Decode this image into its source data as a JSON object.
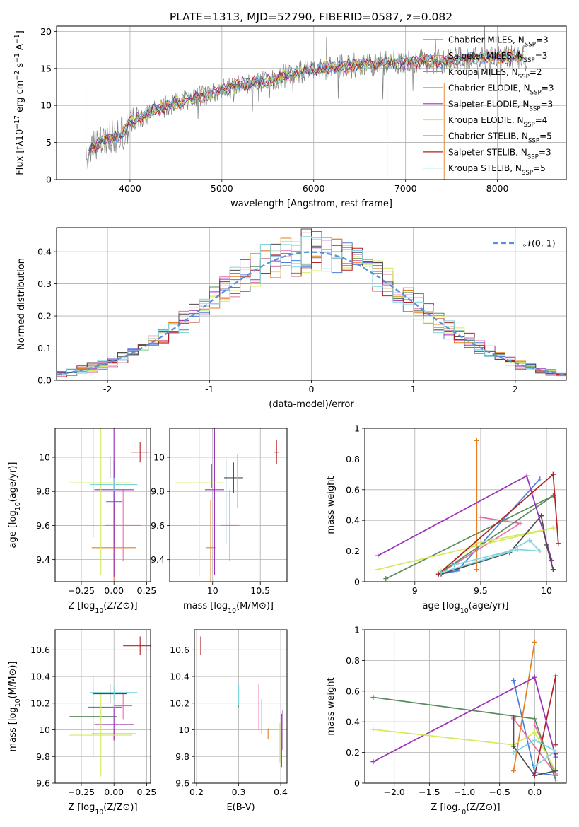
{
  "figure": {
    "title": "PLATE=1313, MJD=52790, FIBERID=0587, z=0.082"
  },
  "colors": {
    "Chabrier MILES": "#4a7fdb",
    "Salpeter MILES": "#e76fa8",
    "Kroupa MILES": "#e67e22",
    "Chabrier ELODIE": "#5a8a5e",
    "Salpeter ELODIE": "#9b30b8",
    "Kroupa ELODIE": "#d4ea5c",
    "Chabrier STELIB": "#4d4d4d",
    "Salpeter STELIB": "#b22222",
    "Kroupa STELIB": "#7fd4e0",
    "data": "#808080"
  },
  "chart_data": [
    {
      "id": "spectrum",
      "type": "line",
      "title": "PLATE=1313, MJD=52790, FIBERID=0587, z=0.082",
      "xlabel": "wavelength [Angstrom, rest frame]",
      "ylabel": "Flux [f$_\\lambda$10$^{-17}$ erg cm$^{-2}$ s$^{-1}$ A$^{-1}$]",
      "xlim": [
        3200,
        8750
      ],
      "ylim": [
        0,
        20.7
      ],
      "xticks": [
        4000,
        5000,
        6000,
        7000,
        8000
      ],
      "yticks": [
        0,
        5,
        10,
        15,
        20
      ],
      "legend_position": "upper right",
      "continuum_x": [
        3520,
        3700,
        3900,
        4000,
        4300,
        4600,
        4900,
        5000,
        5200,
        5400,
        5600,
        5800,
        6000,
        6200,
        6400,
        6600,
        6800,
        7000,
        7200,
        7400,
        7600,
        7800,
        8000,
        8200,
        8320
      ],
      "continuum_y": [
        3.6,
        5.2,
        6.0,
        7.6,
        9.6,
        10.8,
        11.6,
        12.0,
        12.9,
        13.2,
        13.6,
        14.4,
        14.8,
        15.2,
        15.4,
        15.5,
        15.7,
        15.9,
        16.1,
        15.9,
        16.2,
        16.4,
        16.5,
        16.6,
        16.5
      ],
      "legend": [
        {
          "label": "Chabrier MILES, N$_{SSP}$=3",
          "color": "#4a7fdb"
        },
        {
          "label": "Salpeter MILES, N$_{SSP}$=3",
          "color": "#e76fa8"
        },
        {
          "label": "Kroupa MILES, N$_{SSP}$=2",
          "color": "#e67e22"
        },
        {
          "label": "Chabrier ELODIE, N$_{SSP}$=3",
          "color": "#5a8a5e"
        },
        {
          "label": "Salpeter ELODIE, N$_{SSP}$=3",
          "color": "#9b30b8"
        },
        {
          "label": "Kroupa ELODIE, N$_{SSP}$=4",
          "color": "#d4ea5c"
        },
        {
          "label": "Chabrier STELIB, N$_{SSP}$=5",
          "color": "#4d4d4d"
        },
        {
          "label": "Salpeter STELIB, N$_{SSP}$=3",
          "color": "#b22222"
        },
        {
          "label": "Kroupa STELIB, N$_{SSP}$=5",
          "color": "#7fd4e0"
        }
      ]
    },
    {
      "id": "residuals",
      "type": "step",
      "xlabel": "(data-model)/error",
      "ylabel": "Normed distribution",
      "xlim": [
        -2.5,
        2.5
      ],
      "ylim": [
        0,
        0.475
      ],
      "xticks": [
        -2,
        -1,
        0,
        1,
        2
      ],
      "yticks": [
        0.0,
        0.1,
        0.2,
        0.3,
        0.4
      ],
      "gaussian_label": "$\\mathcal{N}(0,1)$",
      "legend_position": "upper right",
      "bin_width": 0.1
    },
    {
      "id": "age-vs-Z",
      "type": "errorbar",
      "xlabel": "Z [log$_{10}$(Z/Z$_\\odot$)]",
      "ylabel": "age  [log$_{10}$(age/yr)]",
      "xlim": [
        -0.45,
        0.28
      ],
      "ylim": [
        9.27,
        10.17
      ],
      "xticks": [
        -0.25,
        0.0,
        0.25
      ],
      "xticklabels": [
        "−0.25",
        "0.00",
        "0.25"
      ],
      "yticks": [
        9.4,
        9.6,
        9.8,
        10.0
      ],
      "points": [
        {
          "model": "Chabrier MILES",
          "x": 0.0,
          "xerr": 0.06,
          "y": 9.74,
          "yerr": 0.24
        },
        {
          "model": "Salpeter MILES",
          "x": 0.07,
          "xerr": 0.14,
          "y": 9.6,
          "yerr": 0.21
        },
        {
          "model": "Kroupa MILES",
          "x": 0.0,
          "xerr": 0.17,
          "y": 9.47,
          "yerr": 0.27
        },
        {
          "model": "Chabrier ELODIE",
          "x": -0.16,
          "xerr": 0.18,
          "y": 9.89,
          "yerr": 0.36
        },
        {
          "model": "Salpeter ELODIE",
          "x": 0.0,
          "xerr": 0.15,
          "y": 9.81,
          "yerr": 0.51
        },
        {
          "model": "Kroupa ELODIE",
          "x": -0.1,
          "xerr": 0.24,
          "y": 9.85,
          "yerr": 0.54
        },
        {
          "model": "Chabrier STELIB",
          "x": -0.03,
          "xerr": 0.0,
          "y": 9.94,
          "yerr": 0.06
        },
        {
          "model": "Salpeter STELIB",
          "x": 0.2,
          "xerr": 0.07,
          "y": 10.03,
          "yerr": 0.06
        },
        {
          "model": "Kroupa STELIB",
          "x": 0.0,
          "xerr": 0.18,
          "y": 9.84,
          "yerr": 0.04
        }
      ]
    },
    {
      "id": "age-vs-mass",
      "type": "errorbar",
      "xlabel": "mass [log$_{10}$(M/M$_\\odot$)]",
      "ylabel": "",
      "xlim": [
        9.55,
        10.78
      ],
      "ylim": [
        9.27,
        10.17
      ],
      "xticks": [
        10.0,
        10.5
      ],
      "yticks": [
        9.4,
        9.6,
        9.8,
        10.0
      ],
      "points": [
        {
          "model": "Chabrier MILES",
          "x": 10.14,
          "xerr": 0.0,
          "y": 9.74,
          "yerr": 0.25
        },
        {
          "model": "Salpeter MILES",
          "x": 10.18,
          "xerr": 0.1,
          "y": 9.6,
          "yerr": 0.21
        },
        {
          "model": "Kroupa MILES",
          "x": 9.98,
          "xerr": 0.05,
          "y": 9.47,
          "yerr": 0.28
        },
        {
          "model": "Chabrier ELODIE",
          "x": 9.99,
          "xerr": 0.14,
          "y": 9.89,
          "yerr": 0.07
        },
        {
          "model": "Salpeter ELODIE",
          "x": 10.02,
          "xerr": 0.1,
          "y": 9.81,
          "yerr": 0.5
        },
        {
          "model": "Kroupa ELODIE",
          "x": 9.86,
          "xerr": 0.25,
          "y": 9.85,
          "yerr": 0.55
        },
        {
          "model": "Chabrier STELIB",
          "x": 10.22,
          "xerr": 0.1,
          "y": 9.88,
          "yerr": 0.09
        },
        {
          "model": "Salpeter STELIB",
          "x": 10.67,
          "xerr": 0.03,
          "y": 10.03,
          "yerr": 0.07
        },
        {
          "model": "Kroupa STELIB",
          "x": 10.26,
          "xerr": 0.0,
          "y": 9.86,
          "yerr": 0.16
        }
      ]
    },
    {
      "id": "weight-vs-age",
      "type": "line",
      "xlabel": "age  [log$_{10}$(age/yr)]",
      "ylabel": "mass weight",
      "xlim": [
        8.62,
        10.15
      ],
      "ylim": [
        0.0,
        1.0
      ],
      "xticks": [
        9.0,
        9.5,
        10.0
      ],
      "yticks": [
        0.0,
        0.2,
        0.4,
        0.6,
        0.8,
        1.0
      ],
      "series": [
        {
          "model": "Chabrier MILES",
          "points": [
            [
              9.2,
              0.05
            ],
            [
              9.32,
              0.07
            ],
            [
              9.95,
              0.67
            ]
          ]
        },
        {
          "model": "Salpeter MILES",
          "points": [
            [
              9.5,
              0.42
            ],
            [
              9.8,
              0.38
            ],
            [
              9.2,
              0.06
            ]
          ]
        },
        {
          "model": "Kroupa MILES",
          "points": [
            [
              9.47,
              0.08
            ],
            [
              9.47,
              0.92
            ]
          ]
        },
        {
          "model": "Chabrier ELODIE",
          "points": [
            [
              8.78,
              0.02
            ],
            [
              10.05,
              0.56
            ],
            [
              9.18,
              0.05
            ]
          ]
        },
        {
          "model": "Salpeter ELODIE",
          "points": [
            [
              8.72,
              0.17
            ],
            [
              9.85,
              0.69
            ],
            [
              10.04,
              0.14
            ]
          ]
        },
        {
          "model": "Kroupa ELODIE",
          "points": [
            [
              8.72,
              0.08
            ],
            [
              10.05,
              0.35
            ],
            [
              9.46,
              0.25
            ],
            [
              9.2,
              0.07
            ]
          ]
        },
        {
          "model": "Chabrier STELIB",
          "points": [
            [
              9.2,
              0.05
            ],
            [
              9.72,
              0.19
            ],
            [
              9.96,
              0.43
            ],
            [
              10.0,
              0.24
            ],
            [
              10.05,
              0.08
            ]
          ]
        },
        {
          "model": "Salpeter STELIB",
          "points": [
            [
              9.18,
              0.05
            ],
            [
              10.05,
              0.7
            ],
            [
              10.09,
              0.25
            ]
          ]
        },
        {
          "model": "Kroupa STELIB",
          "points": [
            [
              9.3,
              0.11
            ],
            [
              9.72,
              0.2
            ],
            [
              9.87,
              0.27
            ],
            [
              9.95,
              0.2
            ],
            [
              9.78,
              0.21
            ],
            [
              9.2,
              0.06
            ]
          ]
        }
      ]
    },
    {
      "id": "mass-vs-Z",
      "type": "errorbar",
      "xlabel": "Z [log$_{10}$(Z/Z$_\\odot$)]",
      "ylabel": "mass [log$_{10}$(M/M$_\\odot$)]",
      "xlim": [
        -0.45,
        0.28
      ],
      "ylim": [
        9.6,
        10.75
      ],
      "xticks": [
        -0.25,
        0.0,
        0.25
      ],
      "xticklabels": [
        "−0.25",
        "0.00",
        "0.25"
      ],
      "yticks": [
        9.6,
        9.8,
        10.0,
        10.2,
        10.4,
        10.6
      ],
      "points": [
        {
          "model": "Chabrier MILES",
          "x": -0.07,
          "xerr": 0.13,
          "y": 10.17,
          "yerr": 0.0
        },
        {
          "model": "Salpeter MILES",
          "x": 0.07,
          "xerr": 0.07,
          "y": 10.18,
          "yerr": 0.1
        },
        {
          "model": "Kroupa MILES",
          "x": 0.0,
          "xerr": 0.17,
          "y": 9.97,
          "yerr": 0.04
        },
        {
          "model": "Chabrier ELODIE",
          "x": -0.16,
          "xerr": 0.18,
          "y": 10.1,
          "yerr": 0.3
        },
        {
          "model": "Salpeter ELODIE",
          "x": 0.0,
          "xerr": 0.15,
          "y": 10.04,
          "yerr": 0.12
        },
        {
          "model": "Kroupa ELODIE",
          "x": -0.1,
          "xerr": 0.24,
          "y": 9.96,
          "yerr": 0.31
        },
        {
          "model": "Chabrier STELIB",
          "x": -0.03,
          "xerr": 0.13,
          "y": 10.27,
          "yerr": 0.07
        },
        {
          "model": "Salpeter STELIB",
          "x": 0.2,
          "xerr": 0.13,
          "y": 10.63,
          "yerr": 0.07
        },
        {
          "model": "Kroupa STELIB",
          "x": 0.0,
          "xerr": 0.18,
          "y": 10.28,
          "yerr": 0.05
        }
      ]
    },
    {
      "id": "mass-vs-ebv",
      "type": "errorbar",
      "xlabel": "E(B-V)",
      "ylabel": "",
      "xlim": [
        0.195,
        0.415
      ],
      "ylim": [
        9.6,
        10.75
      ],
      "xticks": [
        0.2,
        0.3,
        0.4
      ],
      "yticks": [
        9.6,
        9.8,
        10.0,
        10.2,
        10.4,
        10.6
      ],
      "points": [
        {
          "model": "Chabrier MILES",
          "x": 0.355,
          "xerr": 0.0,
          "y": 10.1,
          "yerr": 0.13
        },
        {
          "model": "Salpeter MILES",
          "x": 0.348,
          "xerr": 0.0,
          "y": 10.17,
          "yerr": 0.17
        },
        {
          "model": "Kroupa MILES",
          "x": 0.37,
          "xerr": 0.0,
          "y": 9.97,
          "yerr": 0.04
        },
        {
          "model": "Chabrier ELODIE",
          "x": 0.3,
          "xerr": 0.0,
          "y": 10.25,
          "yerr": 0.08
        },
        {
          "model": "Salpeter ELODIE",
          "x": 0.405,
          "xerr": 0.0,
          "y": 10.0,
          "yerr": 0.15
        },
        {
          "model": "Kroupa ELODIE",
          "x": 0.398,
          "xerr": 0.0,
          "y": 9.9,
          "yerr": 0.15
        },
        {
          "model": "Chabrier STELIB",
          "x": 0.402,
          "xerr": 0.0,
          "y": 9.92,
          "yerr": 0.2
        },
        {
          "model": "Salpeter STELIB",
          "x": 0.21,
          "xerr": 0.0,
          "y": 10.63,
          "yerr": 0.07
        },
        {
          "model": "Kroupa STELIB",
          "x": 0.3,
          "xerr": 0.0,
          "y": 10.26,
          "yerr": 0.08
        }
      ]
    },
    {
      "id": "weight-vs-Z",
      "type": "line",
      "xlabel": "Z [log$_{10}$(Z/Z$_\\odot$)]",
      "ylabel": "mass weight",
      "xlim": [
        -2.42,
        0.45
      ],
      "ylim": [
        0.0,
        1.0
      ],
      "xticks": [
        -2.0,
        -1.5,
        -1.0,
        -0.5,
        0.0
      ],
      "xticklabels": [
        "−2.0",
        "−1.5",
        "−1.0",
        "−0.5",
        "0.0"
      ],
      "yticks": [
        0.0,
        0.2,
        0.4,
        0.6,
        0.8,
        1.0
      ],
      "series": [
        {
          "model": "Chabrier MILES",
          "points": [
            [
              -0.3,
              0.67
            ],
            [
              0.0,
              0.07
            ],
            [
              0.3,
              0.05
            ]
          ]
        },
        {
          "model": "Salpeter MILES",
          "points": [
            [
              0.0,
              0.38
            ],
            [
              0.3,
              0.06
            ],
            [
              -0.3,
              0.42
            ]
          ]
        },
        {
          "model": "Kroupa MILES",
          "points": [
            [
              -0.3,
              0.08
            ],
            [
              0.0,
              0.92
            ]
          ]
        },
        {
          "model": "Chabrier ELODIE",
          "points": [
            [
              -2.3,
              0.56
            ],
            [
              0.0,
              0.42
            ],
            [
              0.3,
              0.02
            ]
          ]
        },
        {
          "model": "Salpeter ELODIE",
          "points": [
            [
              -2.3,
              0.14
            ],
            [
              0.0,
              0.69
            ],
            [
              0.3,
              0.17
            ]
          ]
        },
        {
          "model": "Kroupa ELODIE",
          "points": [
            [
              -2.3,
              0.35
            ],
            [
              -0.3,
              0.25
            ],
            [
              0.0,
              0.33
            ],
            [
              0.3,
              0.08
            ]
          ]
        },
        {
          "model": "Chabrier STELIB",
          "points": [
            [
              -0.3,
              0.43
            ],
            [
              -0.3,
              0.24
            ],
            [
              0.0,
              0.05
            ],
            [
              0.3,
              0.08
            ],
            [
              0.3,
              0.19
            ]
          ]
        },
        {
          "model": "Salpeter STELIB",
          "points": [
            [
              0.0,
              0.05
            ],
            [
              0.3,
              0.7
            ],
            [
              0.3,
              0.25
            ]
          ]
        },
        {
          "model": "Kroupa STELIB",
          "points": [
            [
              -0.3,
              0.2
            ],
            [
              0.0,
              0.28
            ],
            [
              0.3,
              0.21
            ],
            [
              0.0,
              0.11
            ]
          ]
        }
      ]
    }
  ]
}
